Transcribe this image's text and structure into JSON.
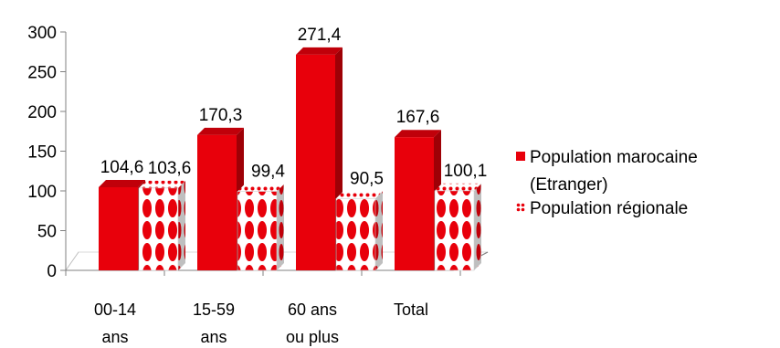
{
  "chart_data": {
    "type": "bar",
    "categories": [
      [
        "00-14",
        "ans"
      ],
      [
        "15-59",
        "ans"
      ],
      [
        "60 ans",
        "ou plus"
      ],
      [
        "Total"
      ]
    ],
    "series": [
      {
        "name": "Population marocaine (Etranger)",
        "values": [
          104.6,
          170.3,
          271.4,
          167.6
        ],
        "labels": [
          "104,6",
          "170,3",
          "271,4",
          "167,6"
        ],
        "color": "#e8000b",
        "pattern": "solid"
      },
      {
        "name": "Population régionale",
        "values": [
          103.6,
          99.4,
          90.5,
          100.1
        ],
        "labels": [
          "103,6",
          "99,4",
          "90,5",
          "100,1"
        ],
        "color": "#e8000b",
        "pattern": "dots"
      }
    ],
    "legend_lines": [
      [
        "Population marocaine",
        "(Etranger)"
      ],
      [
        "Population régionale"
      ]
    ],
    "y_ticks": [
      0,
      50,
      100,
      150,
      200,
      250,
      300
    ],
    "ylim": [
      0,
      300
    ],
    "three_d": true,
    "legend_position": "right",
    "grid": false,
    "title": "",
    "xlabel": "",
    "ylabel": ""
  }
}
